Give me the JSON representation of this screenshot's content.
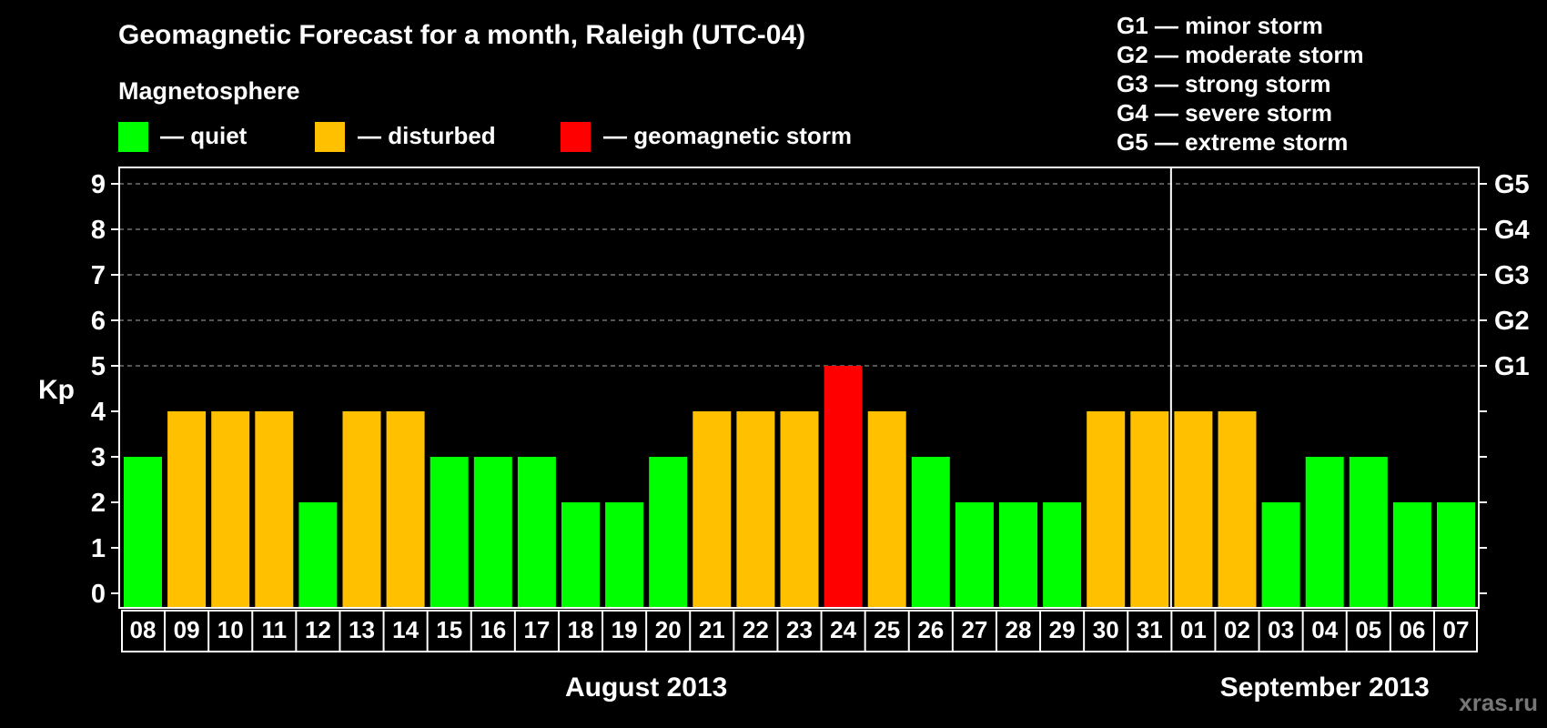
{
  "chart_data": {
    "type": "bar",
    "title": "Geomagnetic Forecast for a month, Raleigh (UTC-04)",
    "ylabel": "Kp",
    "ylim": [
      0,
      9
    ],
    "yticks": [
      "0",
      "1",
      "2",
      "3",
      "4",
      "5",
      "6",
      "7",
      "8",
      "9"
    ],
    "right_ticks": [
      {
        "kp": 5,
        "label": "G1"
      },
      {
        "kp": 6,
        "label": "G2"
      },
      {
        "kp": 7,
        "label": "G3"
      },
      {
        "kp": 8,
        "label": "G4"
      },
      {
        "kp": 9,
        "label": "G5"
      }
    ],
    "categories": [
      "08",
      "09",
      "10",
      "11",
      "12",
      "13",
      "14",
      "15",
      "16",
      "17",
      "18",
      "19",
      "20",
      "21",
      "22",
      "23",
      "24",
      "25",
      "26",
      "27",
      "28",
      "29",
      "30",
      "31",
      "01",
      "02",
      "03",
      "04",
      "05",
      "06",
      "07"
    ],
    "values": [
      3,
      4,
      4,
      4,
      2,
      4,
      4,
      3,
      3,
      3,
      2,
      2,
      3,
      4,
      4,
      4,
      5,
      4,
      3,
      2,
      2,
      2,
      4,
      4,
      4,
      4,
      2,
      3,
      3,
      2,
      2
    ],
    "months": [
      {
        "label": "August 2013",
        "start_index": 0,
        "count": 24
      },
      {
        "label": "September 2013",
        "start_index": 24,
        "count": 7
      }
    ],
    "month_divider_after_index": 23,
    "grid": true,
    "legend": {
      "heading": "Magnetosphere",
      "items": [
        {
          "label": "— quiet",
          "color": "#00ff00"
        },
        {
          "label": "— disturbed",
          "color": "#ffc000"
        },
        {
          "label": "— geomagnetic storm",
          "color": "#ff0000"
        }
      ]
    },
    "storm_levels": [
      "G1 — minor storm",
      "G2 — moderate storm",
      "G3 — strong storm",
      "G4 — severe storm",
      "G5 — extreme storm"
    ],
    "colors": {
      "quiet": "#00ff00",
      "disturbed": "#ffc000",
      "storm": "#ff0000",
      "background": "#000000",
      "axis": "#ffffff",
      "grid": "#888888"
    }
  },
  "watermark": "xras.ru"
}
